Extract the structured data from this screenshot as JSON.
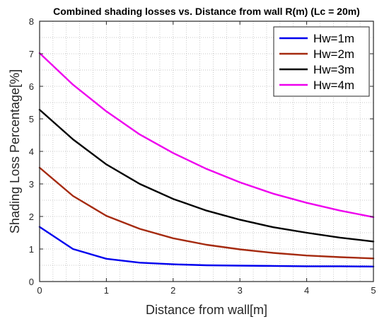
{
  "chart_data": {
    "type": "line",
    "title": "Combined shading losses vs. Distance from wall R(m) (Lc = 20m)",
    "xlabel": "Distance from wall[m]",
    "ylabel": "Shading Loss Percentage[%]",
    "xlim": [
      0,
      5
    ],
    "ylim": [
      0,
      8
    ],
    "xticks": [
      "0",
      "1",
      "2",
      "3",
      "4",
      "5"
    ],
    "yticks": [
      "0",
      "1",
      "2",
      "3",
      "4",
      "5",
      "6",
      "7",
      "8"
    ],
    "grid": "minor-dotted",
    "legend_position": "top-right",
    "x": [
      0,
      0.5,
      1,
      1.5,
      2,
      2.5,
      3,
      3.5,
      4,
      4.5,
      5
    ],
    "series": [
      {
        "name": "Hw=1m",
        "color": "#0000ee",
        "values": [
          1.68,
          1.0,
          0.7,
          0.58,
          0.53,
          0.5,
          0.49,
          0.48,
          0.47,
          0.47,
          0.46
        ]
      },
      {
        "name": "Hw=2m",
        "color": "#a52a0f",
        "values": [
          3.5,
          2.63,
          2.02,
          1.62,
          1.33,
          1.13,
          0.99,
          0.88,
          0.8,
          0.75,
          0.71
        ]
      },
      {
        "name": "Hw=3m",
        "color": "#000000",
        "values": [
          5.28,
          4.37,
          3.6,
          3.0,
          2.54,
          2.18,
          1.9,
          1.67,
          1.5,
          1.35,
          1.23
        ]
      },
      {
        "name": "Hw=4m",
        "color": "#ee00ee",
        "values": [
          7.02,
          6.05,
          5.23,
          4.52,
          3.95,
          3.46,
          3.05,
          2.7,
          2.42,
          2.18,
          1.98
        ]
      }
    ]
  }
}
